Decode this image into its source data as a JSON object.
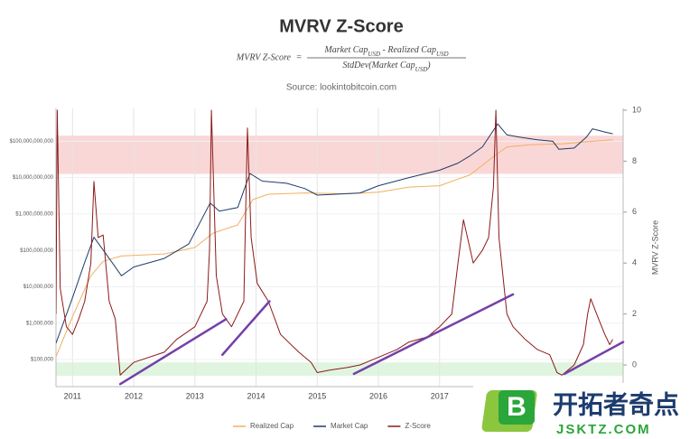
{
  "chart_data": {
    "type": "line",
    "title": "MVRV Z-Score",
    "formula": {
      "lhs": "MVRV Z-Score",
      "eq": "=",
      "numerator": [
        "Market Cap",
        "USD",
        " - Realized Cap",
        "USD"
      ],
      "denominator": [
        "StdDev(Market Cap",
        "USD",
        ")"
      ]
    },
    "subtitle": "Source: lookintobitcoin.com",
    "y2_label": "MVRV Z-Score",
    "xlim": [
      2010.73,
      2020.0
    ],
    "xticks": [
      2011,
      2012,
      2013,
      2014,
      2015,
      2016,
      2017
    ],
    "yscale": "log",
    "ylim": [
      18000,
      800000000000
    ],
    "yticks": [
      {
        "value": 100000,
        "label": "$100,000"
      },
      {
        "value": 1000000,
        "label": "$1,000,000"
      },
      {
        "value": 10000000,
        "label": "$10,000,000"
      },
      {
        "value": 100000000,
        "label": "$100,000,000"
      },
      {
        "value": 1000000000,
        "label": "$1,000,000,000"
      },
      {
        "value": 10000000000,
        "label": "$10,000,000,000"
      },
      {
        "value": 100000000000,
        "label": "$100,000,000,000"
      }
    ],
    "y2lim": [
      -0.85,
      10.07
    ],
    "y2ticks": [
      0,
      2,
      4,
      6,
      8,
      10
    ],
    "grid": true,
    "bands": [
      {
        "y2range": [
          7.5,
          9.0
        ],
        "color": "#f8caca"
      },
      {
        "y2range": [
          -0.43,
          0.1
        ],
        "color": "#d6f2d6"
      }
    ],
    "trend_lines": [
      {
        "x": [
          2011.78,
          2013.51
        ],
        "y2": [
          -0.75,
          1.8
        ]
      },
      {
        "x": [
          2013.45,
          2014.22
        ],
        "y2": [
          0.4,
          2.5
        ]
      },
      {
        "x": [
          2015.6,
          2018.2
        ],
        "y2": [
          -0.35,
          2.77
        ]
      },
      {
        "x": [
          2019.04,
          2020.0
        ],
        "y2": [
          -0.35,
          0.9
        ]
      }
    ],
    "trend_color": "#7440a8",
    "series": [
      {
        "name": "Realized Cap",
        "color": "#f0b060",
        "axis": "y",
        "x": [
          2010.73,
          2011.0,
          2011.3,
          2011.5,
          2011.8,
          2012.5,
          2013.0,
          2013.3,
          2013.7,
          2013.95,
          2014.2,
          2014.8,
          2015.5,
          2016.0,
          2016.5,
          2017.0,
          2017.5,
          2017.9,
          2018.1,
          2018.5,
          2019.0,
          2019.5,
          2019.83
        ],
        "values": [
          120000,
          1500000,
          20000000,
          50000000,
          70000000,
          80000000,
          120000000,
          300000000,
          500000000,
          2500000000,
          3500000000,
          3800000000,
          3600000000,
          4000000000,
          5500000000,
          6000000000,
          12000000000,
          40000000000,
          70000000000,
          80000000000,
          85000000000,
          100000000000,
          110000000000
        ]
      },
      {
        "name": "Market Cap",
        "color": "#1f3d66",
        "axis": "y",
        "x": [
          2010.73,
          2011.0,
          2011.2,
          2011.35,
          2011.6,
          2011.8,
          2012.0,
          2012.5,
          2012.9,
          2013.25,
          2013.4,
          2013.7,
          2013.9,
          2014.1,
          2014.5,
          2014.8,
          2015.0,
          2015.3,
          2015.7,
          2016.0,
          2016.5,
          2017.0,
          2017.3,
          2017.5,
          2017.7,
          2017.95,
          2018.1,
          2018.3,
          2018.6,
          2018.85,
          2018.95,
          2019.2,
          2019.4,
          2019.5,
          2019.7,
          2019.83
        ],
        "values": [
          280000,
          5000000,
          47000000,
          230000000,
          60000000,
          20000000,
          35000000,
          60000000,
          150000000,
          2000000000,
          1200000000,
          1500000000,
          13000000000,
          8000000000,
          7000000000,
          5000000000,
          3300000000,
          3500000000,
          3800000000,
          6000000000,
          10000000000,
          16000000000,
          25000000000,
          40000000000,
          70000000000,
          300000000000,
          150000000000,
          130000000000,
          110000000000,
          100000000000,
          60000000000,
          65000000000,
          130000000000,
          220000000000,
          180000000000,
          160000000000
        ]
      },
      {
        "name": "Z-Score",
        "color": "#8b1a1a",
        "axis": "y2",
        "x": [
          2010.73,
          2010.75,
          2010.8,
          2010.9,
          2011.0,
          2011.1,
          2011.2,
          2011.3,
          2011.35,
          2011.42,
          2011.5,
          2011.6,
          2011.7,
          2011.78,
          2012.0,
          2012.5,
          2012.7,
          2013.0,
          2013.2,
          2013.24,
          2013.27,
          2013.35,
          2013.45,
          2013.6,
          2013.8,
          2013.83,
          2013.86,
          2013.92,
          2014.02,
          2014.2,
          2014.4,
          2014.7,
          2014.9,
          2015.0,
          2015.2,
          2015.5,
          2015.7,
          2016.0,
          2016.3,
          2016.5,
          2016.8,
          2017.0,
          2017.2,
          2017.3,
          2017.39,
          2017.55,
          2017.7,
          2017.8,
          2017.88,
          2017.92,
          2017.97,
          2018.1,
          2018.2,
          2018.4,
          2018.6,
          2018.8,
          2018.92,
          2019.0,
          2019.2,
          2019.35,
          2019.42,
          2019.47,
          2019.6,
          2019.7,
          2019.78,
          2019.83
        ],
        "values": [
          2.0,
          10.0,
          3.0,
          1.5,
          1.2,
          1.8,
          2.5,
          4.0,
          7.2,
          5.0,
          5.1,
          2.5,
          1.8,
          -0.4,
          0.1,
          0.5,
          1.0,
          1.5,
          2.5,
          4.5,
          10.0,
          3.5,
          2.0,
          1.5,
          2.5,
          6.0,
          9.3,
          5.0,
          3.2,
          2.5,
          1.2,
          0.5,
          0.1,
          -0.3,
          -0.2,
          -0.1,
          0.0,
          0.3,
          0.6,
          0.9,
          1.1,
          1.5,
          2.0,
          4.0,
          5.7,
          4.0,
          4.5,
          5.0,
          7.0,
          10.0,
          5.0,
          2.0,
          1.5,
          1.0,
          0.6,
          0.4,
          -0.3,
          -0.4,
          0.0,
          0.8,
          2.0,
          2.6,
          1.8,
          1.2,
          0.8,
          1.0
        ]
      }
    ]
  },
  "watermark": {
    "title": "开拓者奇点",
    "url": "JSKTZ.COM",
    "icon": "B"
  }
}
